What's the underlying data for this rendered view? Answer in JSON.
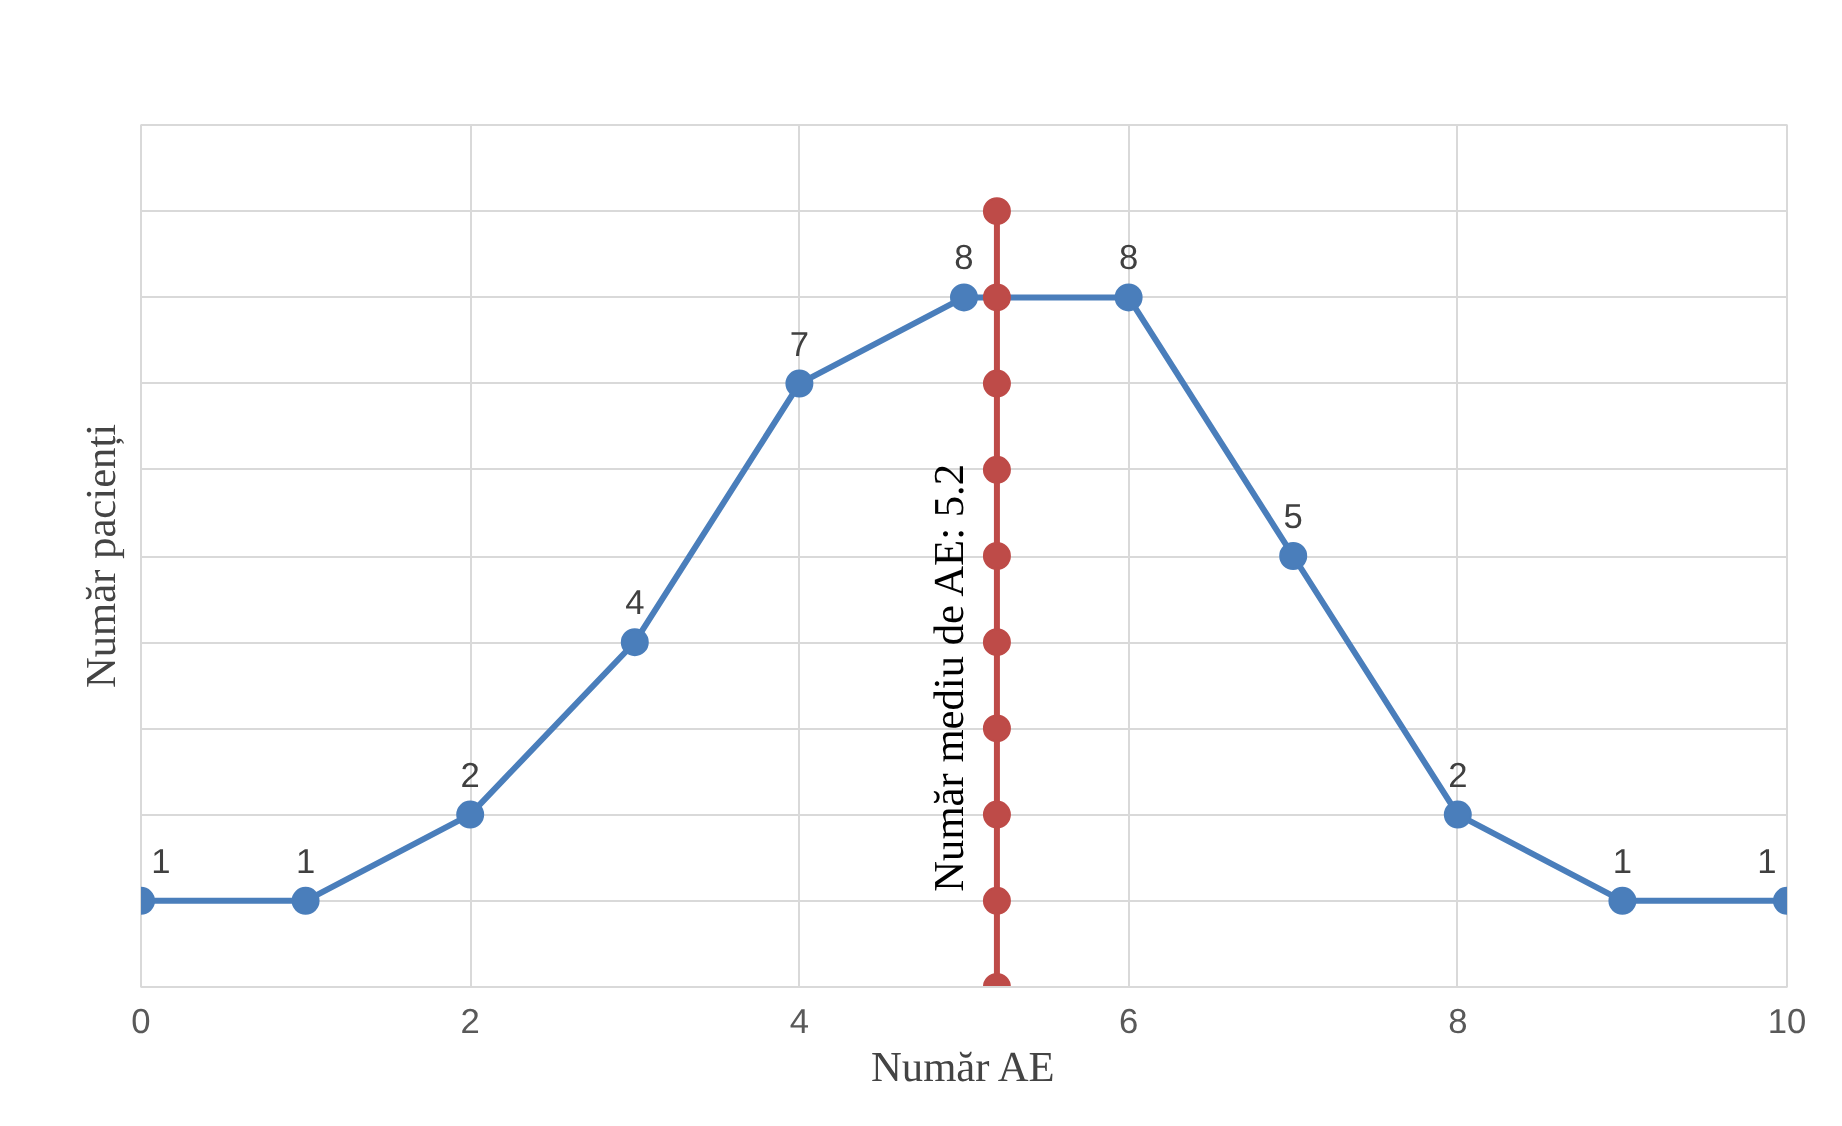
{
  "chart_data": {
    "type": "line",
    "xlabel": "Număr AE",
    "ylabel": "Număr pacienți",
    "xlim": [
      0,
      10
    ],
    "xticks": [
      0,
      2,
      4,
      6,
      8,
      10
    ],
    "ylim": [
      0,
      10
    ],
    "yticks": [
      0,
      1,
      2,
      3,
      4,
      5,
      6,
      7,
      8,
      9,
      10
    ],
    "tick_labels": "x",
    "grid": true,
    "marker": "circle",
    "line_style": "solid",
    "series": [
      {
        "color": "#4a7ebb",
        "x": [
          0,
          1,
          2,
          3,
          4,
          5,
          6,
          7,
          8,
          9,
          10
        ],
        "values": [
          1,
          1,
          2,
          4,
          7,
          8,
          8,
          5,
          2,
          1,
          1
        ],
        "value_labels": [
          "1",
          "1",
          "2",
          "4",
          "7",
          "8",
          "8",
          "5",
          "2",
          "1",
          "1"
        ]
      },
      {
        "color": "#be4b48",
        "x": [
          5.2,
          5.2,
          5.2,
          5.2,
          5.2,
          5.2,
          5.2,
          5.2,
          5.2,
          5.2
        ],
        "values": [
          0,
          1,
          2,
          3,
          4,
          5,
          6,
          7,
          8,
          9
        ]
      }
    ],
    "annotations": [
      {
        "text": "Număr mediu de AE: 5.2",
        "x": 5.2,
        "y": 3.6
      }
    ]
  }
}
